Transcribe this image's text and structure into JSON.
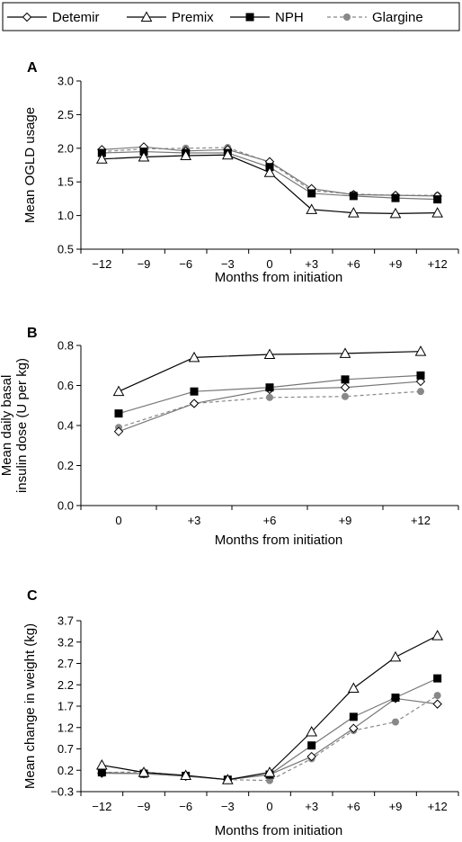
{
  "legend": {
    "items": [
      {
        "name": "Detemir",
        "color": "#000000",
        "dash": false,
        "marker": "diamond-open"
      },
      {
        "name": "Premix",
        "color": "#000000",
        "dash": false,
        "marker": "triangle-open"
      },
      {
        "name": "NPH",
        "color": "#000000",
        "dash": false,
        "marker": "square-filled"
      },
      {
        "name": "Glargine",
        "color": "#888888",
        "dash": true,
        "marker": "circle-filled"
      }
    ]
  },
  "chart_data": [
    {
      "panel": "A",
      "type": "line",
      "x": [
        "−12",
        "−9",
        "−6",
        "−3",
        "0",
        "+3",
        "+6",
        "+9",
        "+12"
      ],
      "xlabel": "Months from initiation",
      "ylabel": "Mean OGLD usage",
      "ylim": [
        0.5,
        3.0
      ],
      "yticks": [
        "0.5",
        "1.0",
        "1.5",
        "2.0",
        "2.5",
        "3.0"
      ],
      "series": [
        {
          "name": "Detemir",
          "values": [
            1.98,
            2.02,
            1.96,
            1.98,
            1.8,
            1.4,
            1.31,
            1.3,
            1.29
          ]
        },
        {
          "name": "Premix",
          "values": [
            1.84,
            1.87,
            1.89,
            1.9,
            1.64,
            1.09,
            1.04,
            1.03,
            1.04
          ]
        },
        {
          "name": "NPH",
          "values": [
            1.93,
            1.95,
            1.93,
            1.93,
            1.72,
            1.33,
            1.29,
            1.26,
            1.24
          ]
        },
        {
          "name": "Glargine",
          "values": [
            1.95,
            1.99,
            2.0,
            2.01,
            1.79,
            1.37,
            1.32,
            1.3,
            1.3
          ]
        }
      ]
    },
    {
      "panel": "B",
      "type": "line",
      "x": [
        "0",
        "+3",
        "+6",
        "+9",
        "+12"
      ],
      "xlabel": "Months from initiation",
      "ylabel": [
        "Mean daily basal",
        "insulin dose (U per kg)"
      ],
      "ylim": [
        0.0,
        0.8
      ],
      "yticks": [
        "0.0",
        "0.2",
        "0.4",
        "0.6",
        "0.8"
      ],
      "series": [
        {
          "name": "Detemir",
          "values": [
            0.37,
            0.51,
            0.58,
            0.59,
            0.62
          ]
        },
        {
          "name": "Premix",
          "values": [
            0.57,
            0.74,
            0.755,
            0.76,
            0.77
          ]
        },
        {
          "name": "NPH",
          "values": [
            0.46,
            0.57,
            0.59,
            0.63,
            0.65
          ]
        },
        {
          "name": "Glargine",
          "values": [
            0.39,
            0.51,
            0.54,
            0.545,
            0.57
          ]
        }
      ]
    },
    {
      "panel": "C",
      "type": "line",
      "x": [
        "−12",
        "−9",
        "−6",
        "−3",
        "0",
        "+3",
        "+6",
        "+9",
        "+12"
      ],
      "xlabel": "Months from initiation",
      "ylabel": "Mean change in weight (kg)",
      "ylim": [
        -0.3,
        3.7
      ],
      "yticks": [
        "−0.3",
        "0.2",
        "0.7",
        "1.2",
        "1.7",
        "2.2",
        "2.7",
        "3.2",
        "3.7"
      ],
      "series": [
        {
          "name": "Detemir",
          "values": [
            0.13,
            0.12,
            0.06,
            -0.02,
            0.1,
            0.52,
            1.18,
            1.88,
            1.75
          ]
        },
        {
          "name": "Premix",
          "values": [
            0.32,
            0.15,
            0.08,
            -0.02,
            0.15,
            1.1,
            2.12,
            2.85,
            3.35
          ]
        },
        {
          "name": "NPH",
          "values": [
            0.15,
            0.12,
            0.07,
            -0.02,
            0.1,
            0.78,
            1.45,
            1.9,
            2.35
          ]
        },
        {
          "name": "Glargine",
          "values": [
            0.15,
            0.16,
            0.07,
            -0.02,
            -0.04,
            0.47,
            1.13,
            1.33,
            1.95
          ]
        }
      ]
    }
  ]
}
